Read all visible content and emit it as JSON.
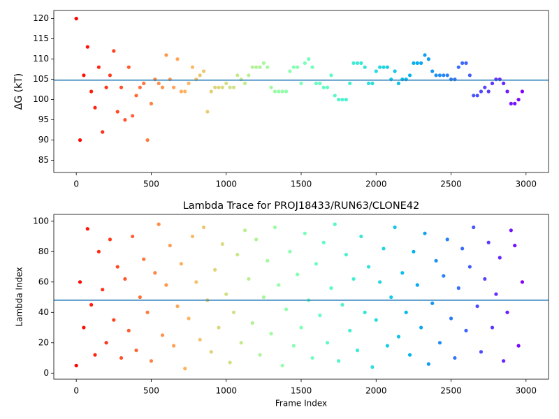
{
  "chart_data": [
    {
      "type": "scatter",
      "ylabel": "ΔG (kT)",
      "xlim": [
        -150,
        3150
      ],
      "ylim": [
        82,
        122
      ],
      "xticks": [
        0,
        500,
        1000,
        1500,
        2000,
        2500,
        3000
      ],
      "yticks": [
        85,
        90,
        95,
        100,
        105,
        110,
        115,
        120
      ],
      "colormap": "rainbow_r",
      "hline": 104.8,
      "hline_color": "#1f77b4",
      "x": [
        0,
        25,
        50,
        75,
        100,
        125,
        150,
        175,
        200,
        225,
        250,
        275,
        300,
        325,
        350,
        375,
        400,
        425,
        450,
        475,
        500,
        525,
        550,
        575,
        600,
        625,
        650,
        675,
        700,
        725,
        750,
        775,
        800,
        825,
        850,
        875,
        900,
        925,
        950,
        975,
        1000,
        1025,
        1050,
        1075,
        1100,
        1125,
        1150,
        1175,
        1200,
        1225,
        1250,
        1275,
        1300,
        1325,
        1350,
        1375,
        1400,
        1425,
        1450,
        1475,
        1500,
        1525,
        1550,
        1575,
        1600,
        1625,
        1650,
        1675,
        1700,
        1725,
        1750,
        1775,
        1800,
        1825,
        1850,
        1875,
        1900,
        1925,
        1950,
        1975,
        2000,
        2025,
        2050,
        2075,
        2100,
        2125,
        2150,
        2175,
        2200,
        2225,
        2250,
        2275,
        2300,
        2325,
        2350,
        2375,
        2400,
        2425,
        2450,
        2475,
        2500,
        2525,
        2550,
        2575,
        2600,
        2625,
        2650,
        2675,
        2700,
        2725,
        2750,
        2775,
        2800,
        2825,
        2850,
        2875,
        2900,
        2925,
        2950,
        2975
      ],
      "values": [
        120,
        90,
        106,
        113,
        102,
        98,
        108,
        92,
        103,
        106,
        112,
        97,
        103,
        95,
        108,
        96,
        101,
        103,
        104,
        90,
        99,
        105,
        104,
        103,
        111,
        105,
        103,
        110,
        102,
        102,
        104,
        108,
        105,
        106,
        107,
        97,
        102,
        103,
        103,
        103,
        104,
        103,
        103,
        106,
        105,
        104,
        106,
        108,
        108,
        108,
        109,
        108,
        103,
        102,
        102,
        102,
        102,
        107,
        108,
        108,
        104,
        109,
        110,
        108,
        104,
        104,
        103,
        103,
        106,
        101,
        100,
        100,
        100,
        104,
        109,
        109,
        109,
        108,
        104,
        104,
        107,
        108,
        108,
        108,
        105,
        107,
        104,
        105,
        105,
        106,
        109,
        109,
        109,
        111,
        110,
        107,
        106,
        106,
        106,
        106,
        105,
        105,
        108,
        109,
        109,
        106,
        101,
        101,
        102,
        103,
        102,
        104,
        105,
        105,
        104,
        102,
        99,
        99,
        100,
        102
      ]
    },
    {
      "type": "scatter",
      "title": "Lambda Trace for PROJ18433/RUN63/CLONE42",
      "xlabel": "Frame Index",
      "ylabel": "Lambda Index",
      "xlim": [
        -150,
        3150
      ],
      "ylim": [
        -4,
        104.5
      ],
      "xticks": [
        0,
        500,
        1000,
        1500,
        2000,
        2500,
        3000
      ],
      "yticks": [
        0,
        20,
        40,
        60,
        80,
        100
      ],
      "colormap": "rainbow_r",
      "hline": 48,
      "hline_color": "#1f77b4",
      "x": [
        0,
        25,
        50,
        75,
        100,
        125,
        150,
        175,
        200,
        225,
        250,
        275,
        300,
        325,
        350,
        375,
        400,
        425,
        450,
        475,
        500,
        525,
        550,
        575,
        600,
        625,
        650,
        675,
        700,
        725,
        750,
        775,
        800,
        825,
        850,
        875,
        900,
        925,
        950,
        975,
        1000,
        1025,
        1050,
        1075,
        1100,
        1125,
        1150,
        1175,
        1200,
        1225,
        1250,
        1275,
        1300,
        1325,
        1350,
        1375,
        1400,
        1425,
        1450,
        1475,
        1500,
        1525,
        1550,
        1575,
        1600,
        1625,
        1650,
        1675,
        1700,
        1725,
        1750,
        1775,
        1800,
        1825,
        1850,
        1875,
        1900,
        1925,
        1950,
        1975,
        2000,
        2025,
        2050,
        2075,
        2100,
        2125,
        2150,
        2175,
        2200,
        2225,
        2250,
        2275,
        2300,
        2325,
        2350,
        2375,
        2400,
        2425,
        2450,
        2475,
        2500,
        2525,
        2550,
        2575,
        2600,
        2625,
        2650,
        2675,
        2700,
        2725,
        2750,
        2775,
        2800,
        2825,
        2850,
        2875,
        2900,
        2925,
        2950,
        2975
      ],
      "values": [
        5,
        60,
        30,
        95,
        45,
        12,
        80,
        55,
        20,
        88,
        35,
        70,
        10,
        62,
        28,
        90,
        15,
        50,
        75,
        40,
        8,
        66,
        98,
        25,
        58,
        84,
        18,
        44,
        72,
        3,
        36,
        90,
        60,
        22,
        96,
        48,
        14,
        68,
        30,
        85,
        52,
        7,
        40,
        78,
        20,
        94,
        62,
        33,
        88,
        12,
        50,
        74,
        26,
        96,
        58,
        5,
        42,
        80,
        18,
        65,
        30,
        92,
        48,
        10,
        72,
        38,
        86,
        20,
        56,
        98,
        8,
        45,
        78,
        28,
        62,
        15,
        90,
        40,
        70,
        4,
        35,
        60,
        82,
        18,
        50,
        96,
        24,
        66,
        40,
        12,
        80,
        58,
        30,
        92,
        6,
        46,
        74,
        20,
        64,
        88,
        36,
        10,
        56,
        82,
        28,
        70,
        96,
        44,
        14,
        62,
        86,
        30,
        52,
        76,
        8,
        40,
        94,
        84,
        18,
        60
      ]
    }
  ]
}
